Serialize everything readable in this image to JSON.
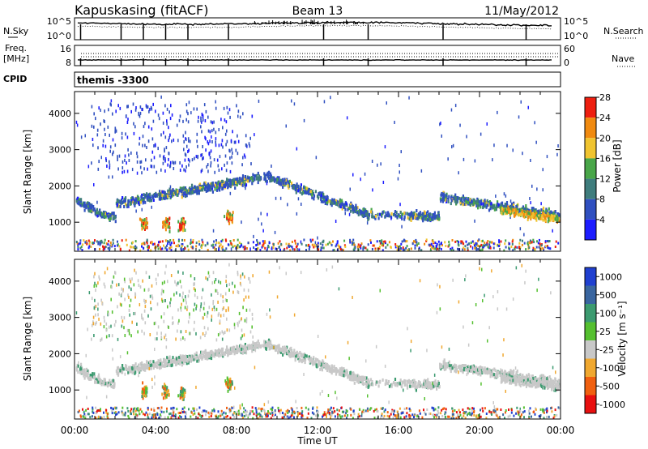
{
  "header": {
    "station": "Kapuskasing (fitACF)",
    "beam": "Beam 13",
    "date": "11/May/2012"
  },
  "chart_data": [
    {
      "type": "line",
      "panel": "noise",
      "left_label": "N.Sky",
      "right_label": "N.Search",
      "left_ticks": [
        "10^5",
        "10^0"
      ],
      "right_ticks": [
        "10^5",
        "10^0"
      ]
    },
    {
      "type": "line",
      "panel": "frequency",
      "left_label_1": "Freq.",
      "left_label_2": "[MHz]",
      "right_label": "Nave",
      "left_ticks": [
        "16",
        "8"
      ],
      "right_ticks": [
        "60",
        "0"
      ]
    },
    {
      "type": "table",
      "panel": "cpid",
      "label": "CPID",
      "value": "themis -3300"
    },
    {
      "type": "heatmap",
      "panel": "power",
      "ylabel": "Slant Range [km]",
      "ylim": [
        200,
        4600
      ],
      "yticks": [
        1000,
        2000,
        3000,
        4000
      ],
      "colorbar_label": "Power [dB]",
      "colorbar_ticks": [
        "4",
        "8",
        "12",
        "16",
        "20",
        "24",
        "28"
      ],
      "colorbar_colors": [
        "#1d1dff",
        "#3050c0",
        "#3f7d7d",
        "#49a649",
        "#f0c430",
        "#f08a10",
        "#ee1f10"
      ]
    },
    {
      "type": "heatmap",
      "panel": "velocity",
      "ylabel": "Slant Range [km]",
      "ylim": [
        200,
        4600
      ],
      "yticks": [
        1000,
        2000,
        3000,
        4000
      ],
      "colorbar_label": "Velocity [m s⁻¹]",
      "colorbar_ticks": [
        "1000",
        "500",
        "100",
        "25",
        "-25",
        "-100",
        "-500",
        "-1000"
      ],
      "colorbar_colors": [
        "#2040d0",
        "#3a66a0",
        "#3c9b70",
        "#55c030",
        "#c8c8c8",
        "#f0a830",
        "#f06010",
        "#e81010"
      ]
    }
  ],
  "time_axis": {
    "label": "Time UT",
    "ticks": [
      "00:00",
      "04:00",
      "08:00",
      "12:00",
      "16:00",
      "20:00",
      "00:00"
    ]
  }
}
